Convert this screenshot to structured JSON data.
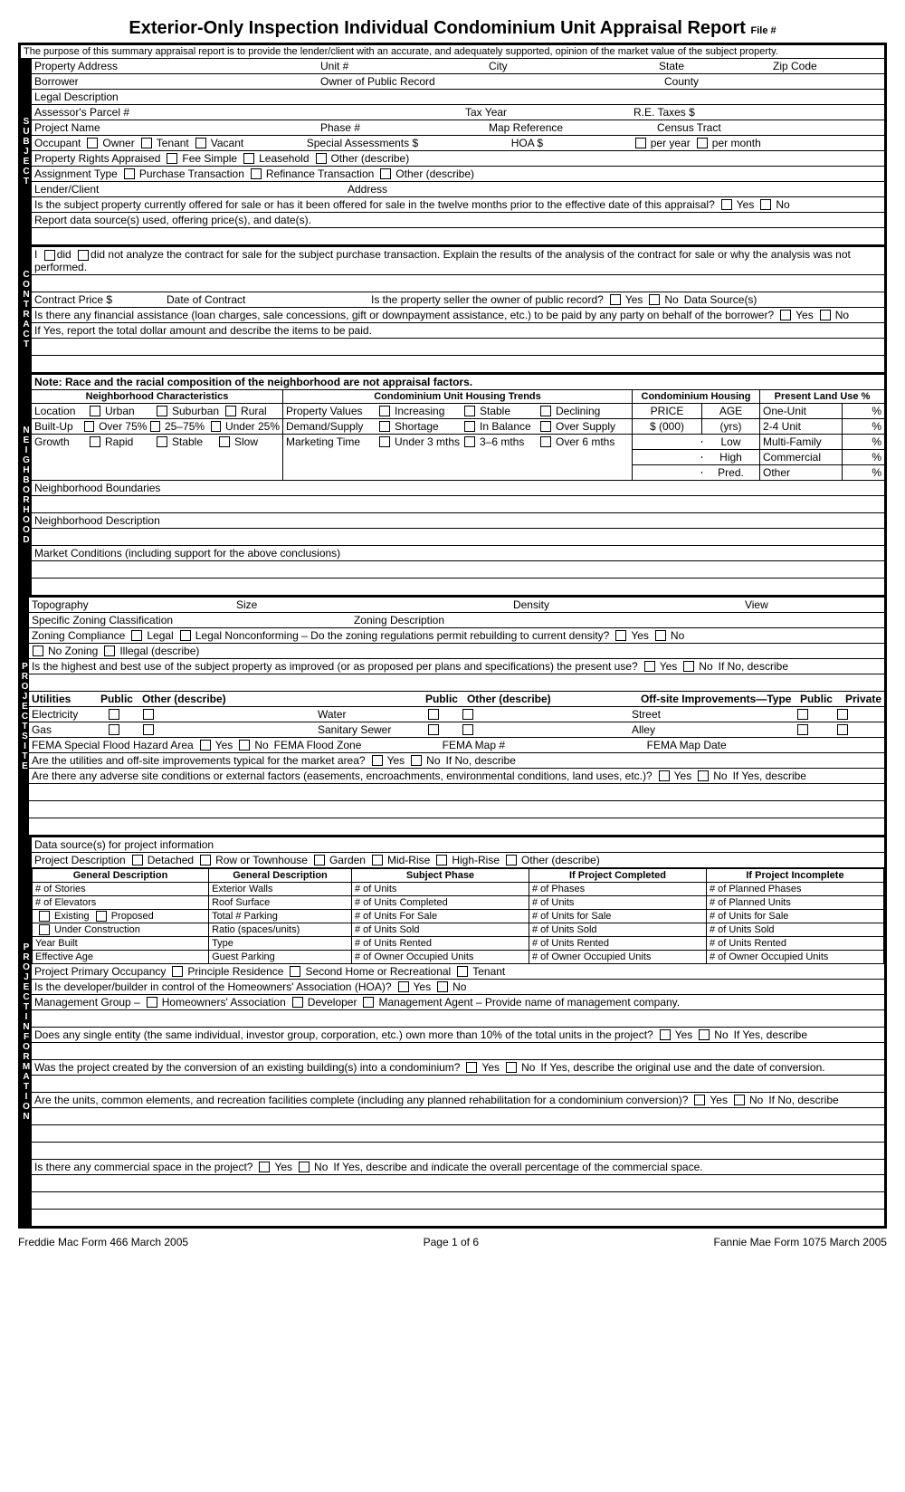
{
  "title": "Exterior-Only Inspection Individual Condominium Unit Appraisal Report",
  "file_label": "File #",
  "purpose": "The purpose of this summary appraisal report is to provide the lender/client with an accurate, and adequately supported, opinion of the market value of the subject property.",
  "subject": {
    "side": "SUBJECT",
    "r1": {
      "a": "Property Address",
      "b": "Unit #",
      "c": "City",
      "d": "State",
      "e": "Zip Code"
    },
    "r2": {
      "a": "Borrower",
      "b": "Owner of Public Record",
      "c": "County"
    },
    "r3": "Legal Description",
    "r4": {
      "a": "Assessor's Parcel #",
      "b": "Tax Year",
      "c": "R.E. Taxes $"
    },
    "r5": {
      "a": "Project Name",
      "b": "Phase #",
      "c": "Map Reference",
      "d": "Census Tract"
    },
    "r6": {
      "a": "Occupant",
      "o1": "Owner",
      "o2": "Tenant",
      "o3": "Vacant",
      "b": "Special Assessments $",
      "c": "HOA $",
      "o4": "per year",
      "o5": "per month"
    },
    "r7": {
      "a": "Property Rights Appraised",
      "o1": "Fee Simple",
      "o2": "Leasehold",
      "o3": "Other (describe)"
    },
    "r8": {
      "a": "Assignment Type",
      "o1": "Purchase Transaction",
      "o2": "Refinance Transaction",
      "o3": "Other (describe)"
    },
    "r9": {
      "a": "Lender/Client",
      "b": "Address"
    },
    "r10": {
      "a": "Is the subject property currently offered for sale or has it been offered for sale in the twelve months prior to the effective date of this appraisal?",
      "y": "Yes",
      "n": "No"
    },
    "r11": "Report data source(s) used, offering price(s), and date(s)."
  },
  "contract": {
    "side": "CONTRACT",
    "r1a": "I",
    "r1b": "did",
    "r1c": "did not analyze the contract for sale for the subject purchase transaction. Explain the results of the analysis of the contract for sale or why the analysis was not performed.",
    "r2": {
      "a": "Contract Price $",
      "b": "Date of Contract",
      "c": "Is the property seller the owner of public record?",
      "y": "Yes",
      "n": "No",
      "d": "Data Source(s)"
    },
    "r3": {
      "a": "Is there any financial assistance (loan charges, sale concessions, gift or downpayment assistance, etc.) to be paid by any party on behalf of the borrower?",
      "y": "Yes",
      "n": "No"
    },
    "r4": "If Yes, report the total dollar amount and describe the items to be paid."
  },
  "neighborhood": {
    "side": "NEIGHBORHOOD",
    "note": "Note: Race and the racial composition of the neighborhood are not appraisal factors.",
    "h1": "Neighborhood Characteristics",
    "h2": "Condominium Unit Housing Trends",
    "h3": "Condominium Housing",
    "h4": "Present Land Use %",
    "char": {
      "loc": "Location",
      "urban": "Urban",
      "sub": "Suburban",
      "rural": "Rural",
      "built": "Built-Up",
      "o75": "Over 75%",
      "m25": "25–75%",
      "u25": "Under 25%",
      "growth": "Growth",
      "rapid": "Rapid",
      "stable": "Stable",
      "slow": "Slow"
    },
    "trends": {
      "pv": "Property Values",
      "inc": "Increasing",
      "stab": "Stable",
      "dec": "Declining",
      "ds": "Demand/Supply",
      "sh": "Shortage",
      "bal": "In Balance",
      "os": "Over Supply",
      "mt": "Marketing Time",
      "u3": "Under 3 mths",
      "m36": "3–6 mths",
      "o6": "Over 6 mths"
    },
    "housing": {
      "price": "PRICE",
      "age": "AGE",
      "s000": "$ (000)",
      "yrs": "(yrs)",
      "low": "Low",
      "high": "High",
      "pred": "Pred."
    },
    "landuse": {
      "one": "One-Unit",
      "two": "2-4 Unit",
      "multi": "Multi-Family",
      "comm": "Commercial",
      "other": "Other",
      "pct": "%"
    },
    "bounds": "Neighborhood Boundaries",
    "desc": "Neighborhood Description",
    "market": "Market Conditions (including support for the above conclusions)"
  },
  "site": {
    "side": "PROJECT SITE",
    "r1": {
      "a": "Topography",
      "b": "Size",
      "c": "Density",
      "d": "View"
    },
    "r2": {
      "a": "Specific Zoning Classification",
      "b": "Zoning Description"
    },
    "r3": {
      "a": "Zoning Compliance",
      "o1": "Legal",
      "o2": "Legal Nonconforming – Do the zoning regulations permit rebuilding to current density?",
      "y": "Yes",
      "n": "No"
    },
    "r4": {
      "o1": "No Zoning",
      "o2": "Illegal (describe)"
    },
    "r5": {
      "a": "Is the highest and best use of the subject property as improved (or as proposed per plans and specifications) the present use?",
      "y": "Yes",
      "n": "No",
      "b": "If No, describe"
    },
    "util": {
      "h": "Utilities",
      "pub": "Public",
      "oth": "Other (describe)",
      "elec": "Electricity",
      "water": "Water",
      "gas": "Gas",
      "sewer": "Sanitary Sewer",
      "off": "Off-site Improvements—Type",
      "priv": "Private",
      "street": "Street",
      "alley": "Alley"
    },
    "fema": {
      "a": "FEMA Special Flood Hazard Area",
      "y": "Yes",
      "n": "No",
      "b": "FEMA Flood Zone",
      "c": "FEMA Map #",
      "d": "FEMA Map Date"
    },
    "typ": {
      "a": "Are the utilities and off-site improvements typical for the market area?",
      "y": "Yes",
      "n": "No",
      "b": "If No, describe"
    },
    "adv": {
      "a": "Are there any adverse site conditions or external factors (easements, encroachments, environmental conditions, land uses, etc.)?",
      "y": "Yes",
      "n": "No",
      "b": "If Yes, describe"
    }
  },
  "project": {
    "side": "PROJECT INFORMATION",
    "r1": "Data source(s) for project information",
    "r2": {
      "a": "Project Description",
      "o1": "Detached",
      "o2": "Row or Townhouse",
      "o3": "Garden",
      "o4": "Mid-Rise",
      "o5": "High-Rise",
      "o6": "Other (describe)"
    },
    "th": [
      "General Description",
      "General Description",
      "Subject Phase",
      "If Project Completed",
      "If Project Incomplete"
    ],
    "tr": [
      [
        "# of Stories",
        "Exterior Walls",
        "# of Units",
        "# of Phases",
        "# of Planned Phases"
      ],
      [
        "# of Elevators",
        "Roof Surface",
        "# of Units Completed",
        "# of Units",
        "# of Planned Units"
      ],
      [
        "☐ Existing ☐ Proposed",
        "Total # Parking",
        "# of Units For Sale",
        "# of Units for Sale",
        "# of Units for Sale"
      ],
      [
        "☐ Under Construction",
        "Ratio (spaces/units)",
        "# of Units Sold",
        "# of Units Sold",
        "# of Units Sold"
      ],
      [
        "Year Built",
        "Type",
        "# of Units Rented",
        "# of Units Rented",
        "# of Units Rented"
      ],
      [
        "Effective Age",
        "Guest Parking",
        "# of Owner Occupied Units",
        "# of Owner Occupied Units",
        "# of Owner Occupied Units"
      ]
    ],
    "r3": {
      "a": "Project Primary Occupancy",
      "o1": "Principle Residence",
      "o2": "Second Home or Recreational",
      "o3": "Tenant"
    },
    "r4": {
      "a": "Is the developer/builder in control of the Homeowners' Association (HOA)?",
      "y": "Yes",
      "n": "No"
    },
    "r5": {
      "a": "Management Group –",
      "o1": "Homeowners' Association",
      "o2": "Developer",
      "o3": "Management Agent – Provide name of management company."
    },
    "r6": {
      "a": "Does any single entity (the same individual, investor group, corporation, etc.) own more than 10% of the total units in the project?",
      "y": "Yes",
      "n": "No",
      "b": "If Yes, describe"
    },
    "r7": {
      "a": "Was the project created by the conversion of an existing building(s) into a condominium?",
      "y": "Yes",
      "n": "No",
      "b": "If Yes, describe the original use and the date of conversion."
    },
    "r8": {
      "a": "Are the units, common elements, and recreation facilities complete (including any planned rehabilitation for a condominium conversion)?",
      "y": "Yes",
      "n": "No",
      "b": "If No, describe"
    },
    "r9": {
      "a": "Is there any commercial space in the project?",
      "y": "Yes",
      "n": "No",
      "b": "If Yes, describe and indicate the overall percentage of the commercial space."
    }
  },
  "footer": {
    "left": "Freddie Mac Form 466   March 2005",
    "center": "Page 1 of 6",
    "right": "Fannie Mae Form 1075   March 2005"
  }
}
